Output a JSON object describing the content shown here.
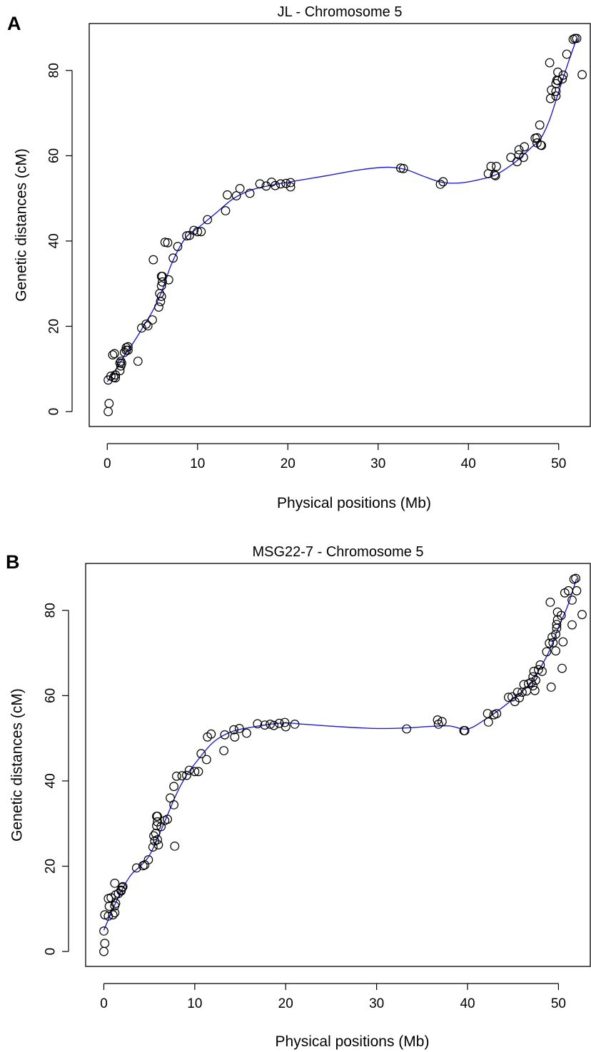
{
  "panels": [
    {
      "letter": "A"
    },
    {
      "letter": "B"
    }
  ],
  "chart_data": [
    {
      "type": "scatter",
      "title": "JL - Chromosome 5",
      "xlabel": "Physical positions (Mb)",
      "ylabel": "Genetic distances (cM)",
      "xlim": [
        -2,
        53.5
      ],
      "ylim": [
        -3.5,
        91
      ],
      "x_ticks": [
        0,
        10,
        20,
        30,
        40,
        50
      ],
      "y_ticks": [
        0,
        20,
        40,
        60,
        80
      ],
      "grid": false,
      "legend": "none",
      "colors": {
        "points": "#000000",
        "smooth_curve": "#1f1fd0"
      },
      "series": [
        {
          "marker": "open-circle",
          "points": [
            [
              0.1,
              0.0
            ],
            [
              0.2,
              1.9
            ],
            [
              0.1,
              7.4
            ],
            [
              0.4,
              8.3
            ],
            [
              0.6,
              13.3
            ],
            [
              0.8,
              13.6
            ],
            [
              0.7,
              8.0
            ],
            [
              0.9,
              7.9
            ],
            [
              0.9,
              8.6
            ],
            [
              1.4,
              9.6
            ],
            [
              1.5,
              10.7
            ],
            [
              1.6,
              11.3
            ],
            [
              1.4,
              11.4
            ],
            [
              1.5,
              11.8
            ],
            [
              1.9,
              13.9
            ],
            [
              2.1,
              14.4
            ],
            [
              2.1,
              15.0
            ],
            [
              2.3,
              15.2
            ],
            [
              2.3,
              14.4
            ],
            [
              3.4,
              11.8
            ],
            [
              3.8,
              19.6
            ],
            [
              4.3,
              20.5
            ],
            [
              4.5,
              20.1
            ],
            [
              5.0,
              21.5
            ],
            [
              5.1,
              35.6
            ],
            [
              5.7,
              24.5
            ],
            [
              5.8,
              27.7
            ],
            [
              5.9,
              25.8
            ],
            [
              6.0,
              27.0
            ],
            [
              6.0,
              29.5
            ],
            [
              6.1,
              30.4
            ],
            [
              6.0,
              31.7
            ],
            [
              6.1,
              31.7
            ],
            [
              6.4,
              39.7
            ],
            [
              6.7,
              39.6
            ],
            [
              6.8,
              30.9
            ],
            [
              7.3,
              36.0
            ],
            [
              7.8,
              38.7
            ],
            [
              8.8,
              41.2
            ],
            [
              9.1,
              41.3
            ],
            [
              9.6,
              42.5
            ],
            [
              10.0,
              42.2
            ],
            [
              10.4,
              42.2
            ],
            [
              11.1,
              45.0
            ],
            [
              13.1,
              47.1
            ],
            [
              13.3,
              50.8
            ],
            [
              14.3,
              50.6
            ],
            [
              14.7,
              52.3
            ],
            [
              15.8,
              51.2
            ],
            [
              16.9,
              53.4
            ],
            [
              17.6,
              52.9
            ],
            [
              18.2,
              53.8
            ],
            [
              18.6,
              53.0
            ],
            [
              19.2,
              53.4
            ],
            [
              19.8,
              53.5
            ],
            [
              20.3,
              53.7
            ],
            [
              20.3,
              52.7
            ],
            [
              32.5,
              57.1
            ],
            [
              32.8,
              57.0
            ],
            [
              36.9,
              53.3
            ],
            [
              37.2,
              53.9
            ],
            [
              42.2,
              55.8
            ],
            [
              42.5,
              57.5
            ],
            [
              42.9,
              55.5
            ],
            [
              43.1,
              57.5
            ],
            [
              43.0,
              55.3
            ],
            [
              44.7,
              59.6
            ],
            [
              45.4,
              58.6
            ],
            [
              45.6,
              60.2
            ],
            [
              45.6,
              61.4
            ],
            [
              46.1,
              59.6
            ],
            [
              46.2,
              62.1
            ],
            [
              47.4,
              64.1
            ],
            [
              47.6,
              64.2
            ],
            [
              47.6,
              63.0
            ],
            [
              47.9,
              67.2
            ],
            [
              48.0,
              62.5
            ],
            [
              48.1,
              62.4
            ],
            [
              49.0,
              81.8
            ],
            [
              49.1,
              73.4
            ],
            [
              49.2,
              75.4
            ],
            [
              49.7,
              74.0
            ],
            [
              49.7,
              75.1
            ],
            [
              49.7,
              76.9
            ],
            [
              49.8,
              77.7
            ],
            [
              49.9,
              79.6
            ],
            [
              49.9,
              77.6
            ],
            [
              50.4,
              78.0
            ],
            [
              50.5,
              78.9
            ],
            [
              50.9,
              83.8
            ],
            [
              51.6,
              87.3
            ],
            [
              51.8,
              87.5
            ],
            [
              52.0,
              87.5
            ],
            [
              52.6,
              79.0
            ]
          ]
        }
      ],
      "smooth_curve": [
        [
          0,
          7
        ],
        [
          1,
          10
        ],
        [
          2,
          13.5
        ],
        [
          3,
          16.5
        ],
        [
          4,
          20
        ],
        [
          5,
          23.5
        ],
        [
          6,
          28
        ],
        [
          7,
          34
        ],
        [
          8,
          38.5
        ],
        [
          9,
          41.5
        ],
        [
          10,
          43
        ],
        [
          12,
          46.5
        ],
        [
          14,
          50
        ],
        [
          16,
          52
        ],
        [
          18,
          53
        ],
        [
          20,
          53.8
        ],
        [
          24,
          55.2
        ],
        [
          28,
          56.7
        ],
        [
          31,
          57.3
        ],
        [
          33,
          56.8
        ],
        [
          35,
          55.2
        ],
        [
          37,
          53.8
        ],
        [
          39,
          53.6
        ],
        [
          41,
          54.3
        ],
        [
          43,
          55.5
        ],
        [
          45,
          58.2
        ],
        [
          46,
          60
        ],
        [
          47,
          62
        ],
        [
          48,
          64
        ],
        [
          49,
          68.5
        ],
        [
          50,
          75
        ],
        [
          51,
          81.5
        ],
        [
          52,
          87.5
        ]
      ]
    },
    {
      "type": "scatter",
      "title": "MSG22-7 - Chromosome 5",
      "xlabel": "Physical positions (Mb)",
      "ylabel": "Genetic distances (cM)",
      "xlim": [
        -2,
        53.5
      ],
      "ylim": [
        -3.5,
        91
      ],
      "x_ticks": [
        0,
        10,
        20,
        30,
        40,
        50
      ],
      "y_ticks": [
        0,
        20,
        40,
        60,
        80
      ],
      "grid": false,
      "legend": "none",
      "colors": {
        "points": "#000000",
        "smooth_curve": "#1f1fd0"
      },
      "series": [
        {
          "marker": "open-circle",
          "points": [
            [
              0.0,
              0.0
            ],
            [
              0.1,
              1.9
            ],
            [
              0.0,
              4.8
            ],
            [
              0.1,
              8.6
            ],
            [
              0.5,
              8.3
            ],
            [
              0.6,
              10.6
            ],
            [
              0.5,
              12.4
            ],
            [
              0.8,
              12.6
            ],
            [
              1.0,
              8.6
            ],
            [
              1.2,
              9.1
            ],
            [
              1.2,
              10.7
            ],
            [
              1.3,
              11.3
            ],
            [
              1.3,
              13.3
            ],
            [
              1.2,
              16.0
            ],
            [
              1.6,
              13.6
            ],
            [
              1.9,
              14.4
            ],
            [
              2.0,
              15.0
            ],
            [
              2.1,
              15.2
            ],
            [
              1.9,
              14.2
            ],
            [
              3.6,
              19.6
            ],
            [
              4.3,
              20.1
            ],
            [
              4.5,
              20.3
            ],
            [
              4.9,
              21.5
            ],
            [
              5.4,
              24.5
            ],
            [
              5.6,
              25.9
            ],
            [
              5.5,
              27.1
            ],
            [
              5.7,
              27.7
            ],
            [
              5.8,
              29.5
            ],
            [
              5.9,
              30.4
            ],
            [
              5.8,
              31.7
            ],
            [
              5.9,
              31.7
            ],
            [
              5.9,
              26.2
            ],
            [
              6.0,
              25.0
            ],
            [
              6.3,
              29.3
            ],
            [
              6.7,
              30.7
            ],
            [
              7.0,
              31.0
            ],
            [
              7.3,
              36.0
            ],
            [
              7.7,
              34.4
            ],
            [
              7.7,
              38.7
            ],
            [
              7.8,
              24.7
            ],
            [
              8.0,
              41.1
            ],
            [
              8.6,
              41.2
            ],
            [
              9.1,
              41.3
            ],
            [
              9.4,
              42.5
            ],
            [
              10.0,
              42.2
            ],
            [
              10.4,
              42.2
            ],
            [
              10.7,
              46.4
            ],
            [
              11.3,
              45.0
            ],
            [
              11.4,
              50.3
            ],
            [
              11.8,
              51.0
            ],
            [
              13.2,
              47.1
            ],
            [
              13.3,
              50.8
            ],
            [
              14.3,
              52.0
            ],
            [
              14.4,
              50.3
            ],
            [
              14.9,
              52.3
            ],
            [
              15.7,
              51.2
            ],
            [
              16.9,
              53.4
            ],
            [
              17.7,
              53.1
            ],
            [
              18.3,
              53.3
            ],
            [
              18.7,
              53.0
            ],
            [
              19.3,
              53.5
            ],
            [
              19.9,
              53.7
            ],
            [
              20.0,
              52.7
            ],
            [
              21.0,
              53.3
            ],
            [
              33.3,
              52.2
            ],
            [
              36.7,
              54.3
            ],
            [
              36.8,
              53.3
            ],
            [
              37.2,
              53.9
            ],
            [
              39.6,
              51.8
            ],
            [
              39.7,
              51.8
            ],
            [
              42.2,
              55.8
            ],
            [
              42.3,
              53.8
            ],
            [
              42.9,
              55.5
            ],
            [
              43.2,
              55.8
            ],
            [
              44.5,
              59.6
            ],
            [
              44.9,
              59.7
            ],
            [
              45.2,
              58.6
            ],
            [
              45.5,
              60.8
            ],
            [
              45.7,
              59.5
            ],
            [
              46.0,
              60.8
            ],
            [
              46.2,
              62.6
            ],
            [
              46.5,
              61.1
            ],
            [
              46.7,
              62.8
            ],
            [
              47.0,
              63.1
            ],
            [
              47.2,
              62.3
            ],
            [
              47.2,
              64.4
            ],
            [
              47.3,
              65.7
            ],
            [
              47.4,
              61.2
            ],
            [
              47.5,
              63.6
            ],
            [
              47.8,
              66.1
            ],
            [
              48.0,
              67.2
            ],
            [
              48.2,
              65.7
            ],
            [
              48.7,
              70.3
            ],
            [
              49.0,
              72.3
            ],
            [
              49.1,
              81.9
            ],
            [
              49.3,
              73.7
            ],
            [
              49.2,
              62.0
            ],
            [
              49.4,
              72.4
            ],
            [
              49.7,
              74.4
            ],
            [
              49.7,
              70.5
            ],
            [
              49.8,
              75.8
            ],
            [
              49.8,
              76.7
            ],
            [
              49.9,
              77.8
            ],
            [
              49.9,
              79.6
            ],
            [
              50.3,
              78.8
            ],
            [
              50.4,
              66.4
            ],
            [
              50.5,
              72.6
            ],
            [
              50.7,
              84.1
            ],
            [
              51.1,
              84.6
            ],
            [
              51.5,
              82.4
            ],
            [
              51.5,
              76.6
            ],
            [
              51.7,
              87.3
            ],
            [
              51.9,
              87.5
            ],
            [
              52.0,
              84.6
            ],
            [
              52.6,
              79.0
            ]
          ]
        }
      ],
      "smooth_curve": [
        [
          0,
          5
        ],
        [
          1,
          10
        ],
        [
          2,
          14.5
        ],
        [
          3,
          18
        ],
        [
          4,
          20
        ],
        [
          5,
          22.5
        ],
        [
          6,
          27
        ],
        [
          7,
          32
        ],
        [
          8,
          37
        ],
        [
          9,
          41
        ],
        [
          10,
          44
        ],
        [
          12,
          49
        ],
        [
          14,
          51.5
        ],
        [
          16,
          52.5
        ],
        [
          18,
          53.2
        ],
        [
          20,
          53.6
        ],
        [
          22,
          53.3
        ],
        [
          26,
          52.7
        ],
        [
          30,
          52.3
        ],
        [
          33,
          52.4
        ],
        [
          36,
          52.8
        ],
        [
          38,
          52.9
        ],
        [
          40,
          52.2
        ],
        [
          42,
          54.5
        ],
        [
          44,
          57.5
        ],
        [
          46,
          61
        ],
        [
          47,
          63
        ],
        [
          48,
          66.5
        ],
        [
          49,
          70.5
        ],
        [
          50,
          76
        ],
        [
          51,
          81
        ],
        [
          52,
          87.5
        ]
      ]
    }
  ]
}
